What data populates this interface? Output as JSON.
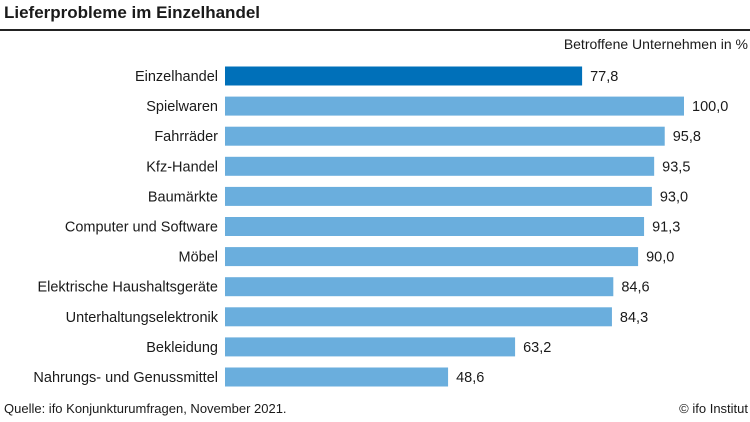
{
  "header": {
    "title": "Lieferprobleme im Einzelhandel",
    "unit_label": "Betroffene Unternehmen in %"
  },
  "footer": {
    "source": "Quelle: ifo Konjunkturumfragen, November 2021.",
    "copyright": "© ifo Institut"
  },
  "colors": {
    "highlight": "#0070b9",
    "bar": "#6aaedd"
  },
  "chart_data": {
    "type": "bar",
    "orientation": "horizontal",
    "title": "Lieferprobleme im Einzelhandel",
    "xlabel": "Betroffene Unternehmen in %",
    "xlim": [
      0,
      100
    ],
    "grid": false,
    "categories": [
      "Einzelhandel",
      "Spielwaren",
      "Fahrräder",
      "Kfz-Handel",
      "Baumärkte",
      "Computer und Software",
      "Möbel",
      "Elektrische Haushaltsgeräte",
      "Unterhaltungselektronik",
      "Bekleidung",
      "Nahrungs- und Genussmittel"
    ],
    "values": [
      77.8,
      100.0,
      95.8,
      93.5,
      93.0,
      91.3,
      90.0,
      84.6,
      84.3,
      63.2,
      48.6
    ],
    "value_labels": [
      "77,8",
      "100,0",
      "95,8",
      "93,5",
      "93,0",
      "91,3",
      "90,0",
      "84,6",
      "84,3",
      "63,2",
      "48,6"
    ],
    "highlighted_category": "Einzelhandel"
  }
}
